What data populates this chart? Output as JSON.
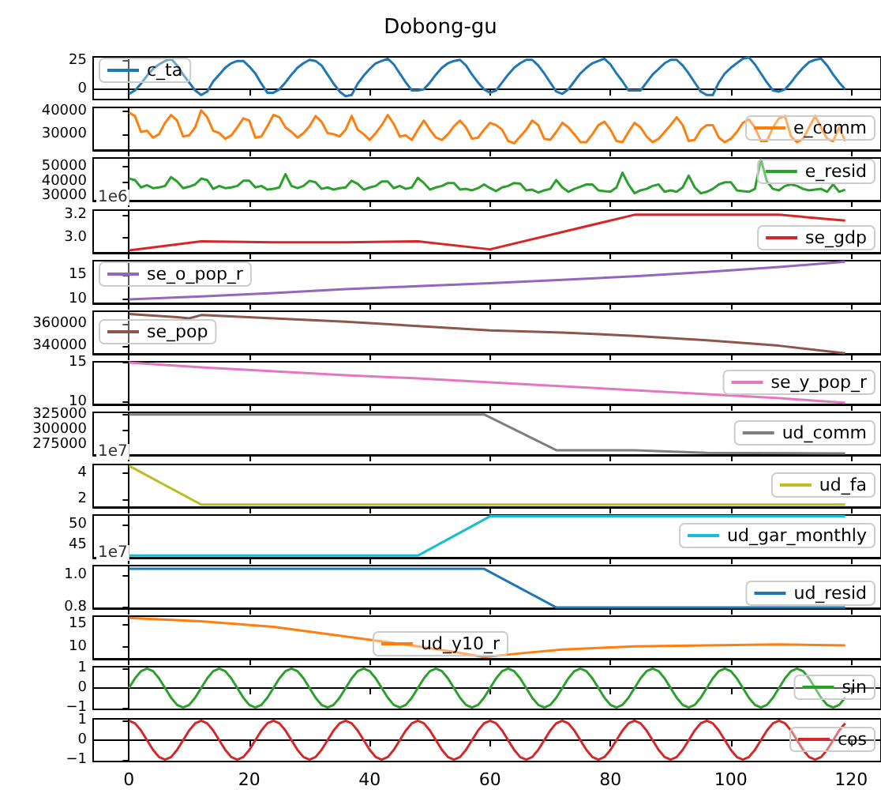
{
  "chart_data": [
    {
      "type": "line",
      "title": "Dobong-gu",
      "x": [
        0,
        1,
        2,
        3,
        4,
        5,
        6,
        7,
        8,
        9,
        10,
        11,
        12,
        13,
        14,
        15,
        16,
        17,
        18,
        19,
        20,
        21,
        22,
        23,
        24,
        25,
        26,
        27,
        28,
        29,
        30,
        31,
        32,
        33,
        34,
        35,
        36,
        37,
        38,
        39,
        40,
        41,
        42,
        43,
        44,
        45,
        46,
        47,
        48,
        49,
        50,
        51,
        52,
        53,
        54,
        55,
        56,
        57,
        58,
        59,
        60,
        61,
        62,
        63,
        64,
        65,
        66,
        67,
        68,
        69,
        70,
        71,
        72,
        73,
        74,
        75,
        76,
        77,
        78,
        79,
        80,
        81,
        82,
        83,
        84,
        85,
        86,
        87,
        88,
        89,
        90,
        91,
        92,
        93,
        94,
        95,
        96,
        97,
        98,
        99,
        100,
        101,
        102,
        103,
        104,
        105,
        106,
        107,
        108,
        109,
        110,
        111,
        112,
        113,
        114,
        115,
        116,
        117,
        118,
        119
      ],
      "series": [
        {
          "name": "c_ta",
          "color": "#1f77b4",
          "values": [
            -4,
            -1,
            5,
            12,
            18,
            22,
            25,
            27,
            21,
            13,
            6,
            -1,
            -5,
            -2,
            7,
            13,
            19,
            23,
            25,
            25,
            20,
            14,
            5,
            -3,
            -3,
            0,
            6,
            13,
            19,
            23,
            26,
            25,
            21,
            13,
            5,
            -2,
            -6,
            -5,
            5,
            12,
            18,
            23,
            25,
            27,
            22,
            14,
            6,
            -1,
            -1,
            0,
            6,
            13,
            19,
            23,
            25,
            26,
            21,
            13,
            6,
            0,
            -3,
            -1,
            6,
            13,
            19,
            23,
            26,
            26,
            21,
            14,
            6,
            -2,
            -4,
            0,
            7,
            14,
            19,
            23,
            25,
            27,
            22,
            14,
            7,
            -1,
            -1,
            -1,
            6,
            13,
            18,
            23,
            26,
            26,
            21,
            14,
            6,
            -2,
            -5,
            -5,
            6,
            14,
            19,
            23,
            27,
            28,
            22,
            14,
            6,
            -1,
            -2,
            0,
            6,
            13,
            19,
            24,
            26,
            27,
            21,
            13,
            6,
            0
          ]
        }
      ],
      "xlim": [
        -5.95,
        124.95
      ],
      "xticks": [
        0,
        20,
        40,
        60,
        80,
        100,
        120
      ],
      "ylim": [
        -9,
        28.6
      ],
      "yticks": [
        0,
        25
      ],
      "legend": "top left",
      "tick_labels": "y"
    },
    {
      "type": "line",
      "x": [
        0,
        1,
        2,
        3,
        4,
        5,
        6,
        7,
        8,
        9,
        10,
        11,
        12,
        13,
        14,
        15,
        16,
        17,
        18,
        19,
        20,
        21,
        22,
        23,
        24,
        25,
        26,
        27,
        28,
        29,
        30,
        31,
        32,
        33,
        34,
        35,
        36,
        37,
        38,
        39,
        40,
        41,
        42,
        43,
        44,
        45,
        46,
        47,
        48,
        49,
        50,
        51,
        52,
        53,
        54,
        55,
        56,
        57,
        58,
        59,
        60,
        61,
        62,
        63,
        64,
        65,
        66,
        67,
        68,
        69,
        70,
        71,
        72,
        73,
        74,
        75,
        76,
        77,
        78,
        79,
        80,
        81,
        82,
        83,
        84,
        85,
        86,
        87,
        88,
        89,
        90,
        91,
        92,
        93,
        94,
        95,
        96,
        97,
        98,
        99,
        100,
        101,
        102,
        103,
        104,
        105,
        106,
        107,
        108,
        109,
        110,
        111,
        112,
        113,
        114,
        115,
        116,
        117,
        118,
        119
      ],
      "series": [
        {
          "name": "e_comm",
          "color": "#ff7f0e",
          "values": [
            39500,
            38000,
            31000,
            31500,
            28500,
            30000,
            35000,
            38500,
            36000,
            29000,
            29500,
            33000,
            40500,
            37500,
            31500,
            30500,
            28000,
            29500,
            33000,
            37000,
            36000,
            28500,
            29000,
            33500,
            38500,
            37500,
            33000,
            31000,
            28500,
            30500,
            33500,
            38000,
            35500,
            30500,
            30000,
            29000,
            32000,
            38000,
            32000,
            30000,
            27500,
            30500,
            34000,
            38500,
            34500,
            29000,
            29500,
            27500,
            32000,
            36000,
            32000,
            28500,
            27500,
            30000,
            33500,
            36000,
            33000,
            28000,
            28500,
            32000,
            35000,
            34000,
            32000,
            27000,
            26000,
            29000,
            32000,
            36000,
            34000,
            28000,
            27500,
            31000,
            35000,
            33000,
            30000,
            26500,
            26500,
            30000,
            34000,
            35500,
            32000,
            27000,
            26500,
            31000,
            35000,
            33000,
            29000,
            26500,
            28000,
            31000,
            34000,
            37500,
            34000,
            27000,
            27500,
            32000,
            34000,
            34000,
            28500,
            26500,
            28000,
            31000,
            35000,
            36500,
            33000,
            27000,
            27000,
            33000,
            37000,
            38000,
            29000,
            26500,
            28000,
            33000,
            38000,
            33000,
            28000,
            27000,
            33000,
            27000
          ]
        }
      ],
      "xlim": [
        -5.95,
        124.95
      ],
      "xticks": [
        0,
        20,
        40,
        60,
        80,
        100,
        120
      ],
      "ylim": [
        23000,
        41800
      ],
      "yticks": [
        30000,
        40000
      ],
      "legend": "right",
      "tick_labels": "y"
    },
    {
      "type": "line",
      "x": [
        0,
        1,
        2,
        3,
        4,
        5,
        6,
        7,
        8,
        9,
        10,
        11,
        12,
        13,
        14,
        15,
        16,
        17,
        18,
        19,
        20,
        21,
        22,
        23,
        24,
        25,
        26,
        27,
        28,
        29,
        30,
        31,
        32,
        33,
        34,
        35,
        36,
        37,
        38,
        39,
        40,
        41,
        42,
        43,
        44,
        45,
        46,
        47,
        48,
        49,
        50,
        51,
        52,
        53,
        54,
        55,
        56,
        57,
        58,
        59,
        60,
        61,
        62,
        63,
        64,
        65,
        66,
        67,
        68,
        69,
        70,
        71,
        72,
        73,
        74,
        75,
        76,
        77,
        78,
        79,
        80,
        81,
        82,
        83,
        84,
        85,
        86,
        87,
        88,
        89,
        90,
        91,
        92,
        93,
        94,
        95,
        96,
        97,
        98,
        99,
        100,
        101,
        102,
        103,
        104,
        105,
        106,
        107,
        108,
        109,
        110,
        111,
        112,
        113,
        114,
        115,
        116,
        117,
        118,
        119
      ],
      "series": [
        {
          "name": "e_resid",
          "color": "#2ca02c",
          "values": [
            42000,
            41000,
            36000,
            37500,
            35500,
            36000,
            37000,
            43000,
            40000,
            35500,
            36500,
            38000,
            42000,
            41000,
            35000,
            37000,
            35500,
            36000,
            37000,
            40500,
            40500,
            36000,
            37000,
            34500,
            35000,
            36000,
            45000,
            37000,
            35500,
            37000,
            40500,
            39500,
            35000,
            36000,
            34500,
            35500,
            36000,
            40500,
            38500,
            34500,
            36000,
            37000,
            40000,
            40000,
            35500,
            37000,
            35000,
            36000,
            42500,
            39000,
            34500,
            36000,
            37000,
            39000,
            39000,
            34500,
            35000,
            34000,
            35500,
            38000,
            35500,
            33500,
            36000,
            37000,
            39000,
            38500,
            34000,
            34500,
            32500,
            34000,
            35000,
            41000,
            36000,
            33000,
            35000,
            36500,
            38000,
            38000,
            34000,
            33500,
            33000,
            36000,
            46000,
            38000,
            32000,
            34000,
            35000,
            37000,
            38000,
            33000,
            34000,
            33000,
            36000,
            44000,
            36000,
            32000,
            33000,
            35000,
            38000,
            39500,
            39500,
            34000,
            33500,
            33000,
            35000,
            55000,
            40000,
            35000,
            34000,
            37000,
            38000,
            37000,
            35000,
            34000,
            34500,
            35000,
            33000,
            38000,
            33000,
            34500
          ]
        }
      ],
      "xlim": [
        -5.95,
        124.95
      ],
      "xticks": [
        0,
        20,
        40,
        60,
        80,
        100,
        120
      ],
      "ylim": [
        27000,
        56000
      ],
      "yticks": [
        30000,
        40000,
        50000
      ],
      "legend": "top right",
      "tick_labels": "y"
    },
    {
      "type": "line",
      "annotations": [
        "1e6"
      ],
      "x": [
        0,
        12,
        24,
        36,
        48,
        60,
        72,
        84,
        96,
        108,
        119
      ],
      "series": [
        {
          "name": "se_gdp",
          "color": "#d62728",
          "values": [
            2.89,
            2.97,
            2.96,
            2.96,
            2.97,
            2.9,
            3.05,
            3.2,
            3.2,
            3.2,
            3.15
          ]
        }
      ],
      "xlim": [
        -5.95,
        124.95
      ],
      "xticks": [
        0,
        20,
        40,
        60,
        80,
        100,
        120
      ],
      "ylim": [
        2.87,
        3.24
      ],
      "yticks": [
        {
          "value": 3,
          "label": "3.0"
        },
        {
          "value": 3.2,
          "label": "3.2"
        }
      ],
      "legend": "bottom right",
      "tick_labels": "y"
    },
    {
      "type": "line",
      "x": [
        0,
        12,
        24,
        36,
        48,
        60,
        72,
        84,
        96,
        108,
        119
      ],
      "series": [
        {
          "name": "se_o_pop_r",
          "color": "#9467bd",
          "values": [
            10,
            10.6,
            11.3,
            12.1,
            12.7,
            13.3,
            14,
            14.7,
            15.6,
            16.6,
            17.7
          ]
        }
      ],
      "xlim": [
        -5.95,
        124.95
      ],
      "xticks": [
        0,
        20,
        40,
        60,
        80,
        100,
        120
      ],
      "ylim": [
        9.2,
        17.9
      ],
      "yticks": [
        10,
        15
      ],
      "legend": "top left",
      "tick_labels": "y"
    },
    {
      "type": "line",
      "x": [
        0,
        8,
        10,
        12,
        24,
        36,
        48,
        60,
        72,
        84,
        96,
        108,
        119
      ],
      "series": [
        {
          "name": "se_pop",
          "color": "#8c564b",
          "values": [
            369000,
            366000,
            365000,
            368000,
            365000,
            362000,
            358000,
            354000,
            352000,
            349000,
            345000,
            340000,
            333000
          ]
        }
      ],
      "xlim": [
        -5.95,
        124.95
      ],
      "xticks": [
        0,
        20,
        40,
        60,
        80,
        100,
        120
      ],
      "ylim": [
        332500,
        371500
      ],
      "yticks": [
        340000,
        360000
      ],
      "legend": "left",
      "tick_labels": "y"
    },
    {
      "type": "line",
      "x": [
        0,
        12,
        24,
        36,
        48,
        60,
        72,
        84,
        96,
        108,
        119
      ],
      "series": [
        {
          "name": "se_y_pop_r",
          "color": "#e377c2",
          "values": [
            15,
            14.4,
            13.9,
            13.4,
            13,
            12.5,
            12,
            11.5,
            11,
            10.5,
            9.9
          ]
        }
      ],
      "xlim": [
        -5.95,
        124.95
      ],
      "xticks": [
        0,
        20,
        40,
        60,
        80,
        100,
        120
      ],
      "ylim": [
        9.7,
        15.1
      ],
      "yticks": [
        10,
        15
      ],
      "legend": "right",
      "tick_labels": "y"
    },
    {
      "type": "line",
      "x": [
        0,
        59,
        71,
        84,
        96,
        119
      ],
      "series": [
        {
          "name": "ud_comm",
          "color": "#7f7f7f",
          "values": [
            326000,
            326000,
            266500,
            266500,
            262000,
            261000
          ]
        }
      ],
      "xlim": [
        -5.95,
        124.95
      ],
      "xticks": [
        0,
        20,
        40,
        60,
        80,
        100,
        120
      ],
      "ylim": [
        258500,
        329500
      ],
      "yticks": [
        275000,
        300000,
        325000
      ],
      "legend": "right",
      "tick_labels": "y"
    },
    {
      "type": "line",
      "annotations": [
        "1e7"
      ],
      "x": [
        0,
        12,
        119
      ],
      "series": [
        {
          "name": "ud_fa",
          "color": "#bcbd22",
          "values": [
            4.6,
            1.6,
            1.6
          ]
        }
      ],
      "xlim": [
        -5.95,
        124.95
      ],
      "xticks": [
        0,
        20,
        40,
        60,
        80,
        100,
        120
      ],
      "ylim": [
        1.4,
        4.7
      ],
      "yticks": [
        2,
        4
      ],
      "legend": "right",
      "tick_labels": "y"
    },
    {
      "type": "line",
      "x": [
        0,
        48,
        60,
        119
      ],
      "series": [
        {
          "name": "ud_gar_monthly",
          "color": "#17becf",
          "values": [
            42.5,
            42.5,
            51.9,
            51.9
          ]
        }
      ],
      "xlim": [
        -5.95,
        124.95
      ],
      "xticks": [
        0,
        20,
        40,
        60,
        80,
        100,
        120
      ],
      "ylim": [
        42,
        52.2
      ],
      "yticks": [
        45,
        50
      ],
      "legend": "right",
      "tick_labels": "y"
    },
    {
      "type": "line",
      "annotations": [
        "1e7"
      ],
      "x": [
        0,
        59,
        71,
        119
      ],
      "series": [
        {
          "name": "ud_resid",
          "color": "#1f77b4",
          "values": [
            1.04,
            1.04,
            0.8,
            0.8
          ]
        }
      ],
      "xlim": [
        -5.95,
        124.95
      ],
      "xticks": [
        0,
        20,
        40,
        60,
        80,
        100,
        120
      ],
      "ylim": [
        0.795,
        1.06
      ],
      "yticks": [
        {
          "value": 0.8,
          "label": "0.8"
        },
        {
          "value": 1,
          "label": "1.0"
        }
      ],
      "legend": "bottom right",
      "tick_labels": "y"
    },
    {
      "type": "line",
      "x": [
        0,
        12,
        24,
        36,
        48,
        54,
        59,
        66,
        72,
        84,
        96,
        108,
        119
      ],
      "series": [
        {
          "name": "ud_y10_r",
          "color": "#ff7f0e",
          "values": [
            16.3,
            15.6,
            14.4,
            12.3,
            10.2,
            9,
            7.9,
            8.8,
            9.5,
            10.2,
            10.4,
            10.6,
            10.4
          ]
        }
      ],
      "xlim": [
        -5.95,
        124.95
      ],
      "xticks": [
        0,
        20,
        40,
        60,
        80,
        100,
        120
      ],
      "ylim": [
        7.5,
        16.7
      ],
      "yticks": [
        10,
        15
      ],
      "legend": "bottom",
      "tick_labels": "y"
    },
    {
      "type": "line",
      "x": [
        0,
        1,
        2,
        3,
        4,
        5,
        6,
        7,
        8,
        9,
        10,
        11,
        12,
        13,
        14,
        15,
        16,
        17,
        18,
        19,
        20,
        21,
        22,
        23,
        24,
        25,
        26,
        27,
        28,
        29,
        30,
        31,
        32,
        33,
        34,
        35,
        36,
        37,
        38,
        39,
        40,
        41,
        42,
        43,
        44,
        45,
        46,
        47,
        48,
        49,
        50,
        51,
        52,
        53,
        54,
        55,
        56,
        57,
        58,
        59,
        60,
        61,
        62,
        63,
        64,
        65,
        66,
        67,
        68,
        69,
        70,
        71,
        72,
        73,
        74,
        75,
        76,
        77,
        78,
        79,
        80,
        81,
        82,
        83,
        84,
        85,
        86,
        87,
        88,
        89,
        90,
        91,
        92,
        93,
        94,
        95,
        96,
        97,
        98,
        99,
        100,
        101,
        102,
        103,
        104,
        105,
        106,
        107,
        108,
        109,
        110,
        111,
        112,
        113,
        114,
        115,
        116,
        117,
        118,
        119
      ],
      "series": [
        {
          "name": "sin",
          "color": "#2ca02c",
          "values": [
            0,
            0.5,
            0.87,
            1,
            0.87,
            0.5,
            0,
            -0.5,
            -0.87,
            -1,
            -0.87,
            -0.5,
            0,
            0.5,
            0.87,
            1,
            0.87,
            0.5,
            0,
            -0.5,
            -0.87,
            -1,
            -0.87,
            -0.5,
            0,
            0.5,
            0.87,
            1,
            0.87,
            0.5,
            0,
            -0.5,
            -0.87,
            -1,
            -0.87,
            -0.5,
            0,
            0.5,
            0.87,
            1,
            0.87,
            0.5,
            0,
            -0.5,
            -0.87,
            -1,
            -0.87,
            -0.5,
            0,
            0.5,
            0.87,
            1,
            0.87,
            0.5,
            0,
            -0.5,
            -0.87,
            -1,
            -0.87,
            -0.5,
            0,
            0.5,
            0.87,
            1,
            0.87,
            0.5,
            0,
            -0.5,
            -0.87,
            -1,
            -0.87,
            -0.5,
            0,
            0.5,
            0.87,
            1,
            0.87,
            0.5,
            0,
            -0.5,
            -0.87,
            -1,
            -0.87,
            -0.5,
            0,
            0.5,
            0.87,
            1,
            0.87,
            0.5,
            0,
            -0.5,
            -0.87,
            -1,
            -0.87,
            -0.5,
            0,
            0.5,
            0.87,
            1,
            0.87,
            0.5,
            0,
            -0.5,
            -0.87,
            -1,
            -0.87,
            -0.5,
            0,
            0.5,
            0.87,
            1,
            0.87,
            0.5,
            0,
            -0.5,
            -0.87,
            -1,
            -0.87,
            -0.5
          ]
        }
      ],
      "xlim": [
        -5.95,
        124.95
      ],
      "xticks": [
        0,
        20,
        40,
        60,
        80,
        100,
        120
      ],
      "ylim": [
        -1.1,
        1.1
      ],
      "yticks": [
        {
          "value": -1,
          "label": "−1"
        },
        0,
        1
      ],
      "legend": "right",
      "tick_labels": "y"
    },
    {
      "type": "line",
      "x": [
        0,
        1,
        2,
        3,
        4,
        5,
        6,
        7,
        8,
        9,
        10,
        11,
        12,
        13,
        14,
        15,
        16,
        17,
        18,
        19,
        20,
        21,
        22,
        23,
        24,
        25,
        26,
        27,
        28,
        29,
        30,
        31,
        32,
        33,
        34,
        35,
        36,
        37,
        38,
        39,
        40,
        41,
        42,
        43,
        44,
        45,
        46,
        47,
        48,
        49,
        50,
        51,
        52,
        53,
        54,
        55,
        56,
        57,
        58,
        59,
        60,
        61,
        62,
        63,
        64,
        65,
        66,
        67,
        68,
        69,
        70,
        71,
        72,
        73,
        74,
        75,
        76,
        77,
        78,
        79,
        80,
        81,
        82,
        83,
        84,
        85,
        86,
        87,
        88,
        89,
        90,
        91,
        92,
        93,
        94,
        95,
        96,
        97,
        98,
        99,
        100,
        101,
        102,
        103,
        104,
        105,
        106,
        107,
        108,
        109,
        110,
        111,
        112,
        113,
        114,
        115,
        116,
        117,
        118,
        119
      ],
      "series": [
        {
          "name": "cos",
          "color": "#d62728",
          "values": [
            1,
            0.87,
            0.5,
            0,
            -0.5,
            -0.87,
            -1,
            -0.87,
            -0.5,
            0,
            0.5,
            0.87,
            1,
            0.87,
            0.5,
            0,
            -0.5,
            -0.87,
            -1,
            -0.87,
            -0.5,
            0,
            0.5,
            0.87,
            1,
            0.87,
            0.5,
            0,
            -0.5,
            -0.87,
            -1,
            -0.87,
            -0.5,
            0,
            0.5,
            0.87,
            1,
            0.87,
            0.5,
            0,
            -0.5,
            -0.87,
            -1,
            -0.87,
            -0.5,
            0,
            0.5,
            0.87,
            1,
            0.87,
            0.5,
            0,
            -0.5,
            -0.87,
            -1,
            -0.87,
            -0.5,
            0,
            0.5,
            0.87,
            1,
            0.87,
            0.5,
            0,
            -0.5,
            -0.87,
            -1,
            -0.87,
            -0.5,
            0,
            0.5,
            0.87,
            1,
            0.87,
            0.5,
            0,
            -0.5,
            -0.87,
            -1,
            -0.87,
            -0.5,
            0,
            0.5,
            0.87,
            1,
            0.87,
            0.5,
            0,
            -0.5,
            -0.87,
            -1,
            -0.87,
            -0.5,
            0,
            0.5,
            0.87,
            1,
            0.87,
            0.5,
            0,
            -0.5,
            -0.87,
            -1,
            -0.87,
            -0.5,
            0,
            0.5,
            0.87,
            1,
            0.87,
            0.5,
            0,
            -0.5,
            -0.87,
            -1,
            -0.87,
            -0.5,
            0,
            0.5,
            0.87
          ]
        }
      ],
      "xlim": [
        -5.95,
        124.95
      ],
      "xticks": [
        0,
        20,
        40,
        60,
        80,
        100,
        120
      ],
      "ylim": [
        -1.1,
        1.1
      ],
      "yticks": [
        {
          "value": -1,
          "label": "−1"
        },
        0,
        1
      ],
      "legend": "right"
    }
  ]
}
